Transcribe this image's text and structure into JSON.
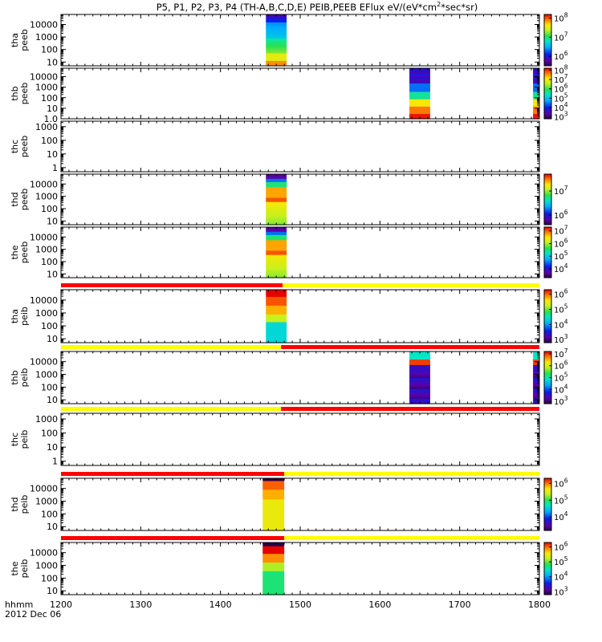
{
  "title": "P5, P1, P2, P3, P4 (TH-A,B,C,D,E) PEIB,PEEB EFlux eV/(eV*cm",
  "title_sup": "2",
  "title_tail": "*sec*sr)",
  "chart_data": {
    "type": "heatmap",
    "x_axis": {
      "label": "hhmm",
      "date": "2012 Dec 06",
      "range": [
        1200,
        1800
      ],
      "ticks": [
        "1200",
        "1300",
        "1400",
        "1500",
        "1600",
        "1700",
        "1800"
      ],
      "tick_values": [
        1200,
        1300,
        1400,
        1500,
        1600,
        1700,
        1800
      ]
    },
    "panels": [
      {
        "probe": "tha",
        "product": "peeb",
        "ylabel1": "tha",
        "ylabel2": "peeb",
        "yticks": [
          "10",
          "100",
          "1000",
          "10000"
        ],
        "ylog": [
          0.7,
          4.8
        ],
        "cbar_ticks": [
          {
            "e": "6"
          },
          {
            "e": "7"
          },
          {
            "e": "8"
          }
        ],
        "cbar_log": [
          5.5,
          8.2
        ],
        "blocks": [
          {
            "start": 1457,
            "end": 1483,
            "profile": "blue_top"
          }
        ],
        "mode_bar": null
      },
      {
        "probe": "thb",
        "product": "peeb",
        "ylabel1": "thb",
        "ylabel2": "peeb",
        "yticks": [
          "1.0",
          "10",
          "100",
          "1000",
          "10000"
        ],
        "ylog": [
          0,
          4.8
        ],
        "cbar_ticks": [
          {
            "e": "3"
          },
          {
            "e": "4"
          },
          {
            "e": "5"
          },
          {
            "e": "6"
          },
          {
            "e": "7"
          },
          {
            "e": "8"
          }
        ],
        "cbar_log": [
          2.8,
          8.2
        ],
        "blocks": [
          {
            "start": 1637,
            "end": 1663,
            "profile": "dark_top"
          },
          {
            "start": 1792,
            "end": 1800,
            "profile": "dark_top"
          }
        ],
        "mode_bar": null
      },
      {
        "probe": "thc",
        "product": "peeb",
        "ylabel1": "thc",
        "ylabel2": "peeb",
        "yticks": [
          "1",
          "10",
          "100",
          "1000"
        ],
        "ylog": [
          -0.3,
          3.4
        ],
        "cbar_ticks": [],
        "cbar_log": null,
        "blocks": [],
        "mode_bar": null
      },
      {
        "probe": "thd",
        "product": "peeb",
        "ylabel1": "thd",
        "ylabel2": "peeb",
        "yticks": [
          "10",
          "100",
          "1000",
          "10000"
        ],
        "ylog": [
          0.7,
          4.8
        ],
        "cbar_ticks": [
          {
            "e": "6"
          },
          {
            "e": "7"
          }
        ],
        "cbar_log": [
          5.6,
          7.7
        ],
        "blocks": [
          {
            "start": 1457,
            "end": 1483,
            "profile": "yellow_warm"
          }
        ],
        "mode_bar": null
      },
      {
        "probe": "the",
        "product": "peeb",
        "ylabel1": "the",
        "ylabel2": "peeb",
        "yticks": [
          "10",
          "100",
          "1000",
          "10000"
        ],
        "ylog": [
          0.7,
          4.8
        ],
        "cbar_ticks": [
          {
            "e": "4"
          },
          {
            "e": "5"
          },
          {
            "e": "6"
          },
          {
            "e": "7"
          }
        ],
        "cbar_log": [
          3.3,
          7.3
        ],
        "blocks": [
          {
            "start": 1457,
            "end": 1483,
            "profile": "yellow_warm"
          }
        ],
        "mode_bar": null
      },
      {
        "probe": "tha",
        "product": "peib",
        "ylabel1": "tha",
        "ylabel2": "peib",
        "yticks": [
          "10",
          "100",
          "1000",
          "10000"
        ],
        "ylog": [
          0.7,
          4.8
        ],
        "cbar_ticks": [
          {
            "e": "3"
          },
          {
            "e": "4"
          },
          {
            "e": "5"
          },
          {
            "e": "6"
          }
        ],
        "cbar_log": [
          2.8,
          6.3
        ],
        "blocks": [
          {
            "start": 1457,
            "end": 1483,
            "profile": "ion_cyan"
          }
        ],
        "mode_bar": {
          "split": 1478,
          "left": "red",
          "right": "yellow"
        }
      },
      {
        "probe": "thb",
        "product": "peib",
        "ylabel1": "thb",
        "ylabel2": "peib",
        "yticks": [
          "10",
          "100",
          "1000",
          "10000"
        ],
        "ylog": [
          0.7,
          4.8
        ],
        "cbar_ticks": [
          {
            "e": "3"
          },
          {
            "e": "4"
          },
          {
            "e": "5"
          },
          {
            "e": "6"
          },
          {
            "e": "7"
          }
        ],
        "cbar_log": [
          2.8,
          7.2
        ],
        "blocks": [
          {
            "start": 1637,
            "end": 1663,
            "profile": "ion_dark"
          },
          {
            "start": 1792,
            "end": 1800,
            "profile": "ion_dark"
          }
        ],
        "mode_bar": {
          "split": 1476,
          "left": "yellow",
          "right": "red"
        }
      },
      {
        "probe": "thc",
        "product": "peib",
        "ylabel1": "thc",
        "ylabel2": "peib",
        "yticks": [
          "1",
          "10",
          "100",
          "1000"
        ],
        "ylog": [
          -0.3,
          3.4
        ],
        "cbar_ticks": [],
        "cbar_log": null,
        "blocks": [],
        "mode_bar": {
          "split": 1476,
          "left": "yellow",
          "right": "red"
        }
      },
      {
        "probe": "thd",
        "product": "peib",
        "ylabel1": "thd",
        "ylabel2": "peib",
        "yticks": [
          "10",
          "100",
          "1000",
          "10000"
        ],
        "ylog": [
          0.7,
          4.8
        ],
        "cbar_ticks": [
          {
            "e": "4"
          },
          {
            "e": "5"
          },
          {
            "e": "6"
          }
        ],
        "cbar_log": [
          3.2,
          6.3
        ],
        "blocks": [
          {
            "start": 1453,
            "end": 1480,
            "profile": "ion_yellow"
          }
        ],
        "mode_bar": {
          "split": 1480,
          "left": "red",
          "right": "yellow"
        }
      },
      {
        "probe": "the",
        "product": "peib",
        "ylabel1": "the",
        "ylabel2": "peib",
        "yticks": [
          "10",
          "100",
          "1000",
          "10000"
        ],
        "ylog": [
          0.7,
          4.8
        ],
        "cbar_ticks": [
          {
            "e": "3"
          },
          {
            "e": "4"
          },
          {
            "e": "5"
          },
          {
            "e": "6"
          }
        ],
        "cbar_log": [
          2.8,
          6.3
        ],
        "blocks": [
          {
            "start": 1453,
            "end": 1480,
            "profile": "ion_green"
          }
        ],
        "mode_bar": {
          "split": 1480,
          "left": "red",
          "right": "yellow"
        }
      }
    ]
  },
  "colors": {
    "axis": "#000000",
    "mode_red": "#ff0000",
    "mode_yellow": "#ffff00"
  }
}
